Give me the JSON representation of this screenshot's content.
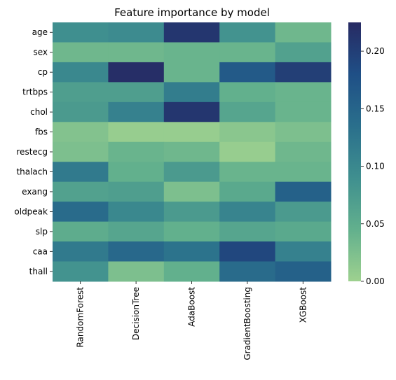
{
  "chart_data": {
    "type": "heatmap",
    "title": "Feature importance by model",
    "xlabel": "",
    "ylabel": "",
    "columns": [
      "RandomForest",
      "DecisionTree",
      "AdaBoost",
      "GradientBoosting",
      "XGBoost"
    ],
    "rows": [
      "age",
      "sex",
      "cp",
      "trtbps",
      "chol",
      "fbs",
      "restecg",
      "thalach",
      "exang",
      "oldpeak",
      "slp",
      "caa",
      "thall"
    ],
    "values": [
      [
        0.09,
        0.095,
        0.21,
        0.085,
        0.035
      ],
      [
        0.035,
        0.035,
        0.04,
        0.04,
        0.065
      ],
      [
        0.1,
        0.22,
        0.04,
        0.165,
        0.2
      ],
      [
        0.07,
        0.07,
        0.115,
        0.045,
        0.04
      ],
      [
        0.075,
        0.11,
        0.21,
        0.06,
        0.04
      ],
      [
        0.02,
        0.005,
        0.005,
        0.015,
        0.025
      ],
      [
        0.025,
        0.04,
        0.035,
        0.005,
        0.035
      ],
      [
        0.12,
        0.045,
        0.075,
        0.04,
        0.04
      ],
      [
        0.065,
        0.07,
        0.025,
        0.055,
        0.155
      ],
      [
        0.14,
        0.1,
        0.075,
        0.105,
        0.075
      ],
      [
        0.05,
        0.06,
        0.045,
        0.06,
        0.055
      ],
      [
        0.12,
        0.145,
        0.13,
        0.19,
        0.11
      ],
      [
        0.085,
        0.025,
        0.045,
        0.14,
        0.155
      ]
    ],
    "colorbar": {
      "range": [
        0,
        0.225
      ],
      "ticks": [
        0.0,
        0.05,
        0.1,
        0.15,
        0.2
      ],
      "tick_labels": [
        "0.00",
        "0.05",
        "0.10",
        "0.15",
        "0.20"
      ]
    },
    "colormap": [
      "#9ed18f",
      "#62b08d",
      "#3f8f8f",
      "#2a6f8c",
      "#1f4f86",
      "#272a63"
    ]
  }
}
